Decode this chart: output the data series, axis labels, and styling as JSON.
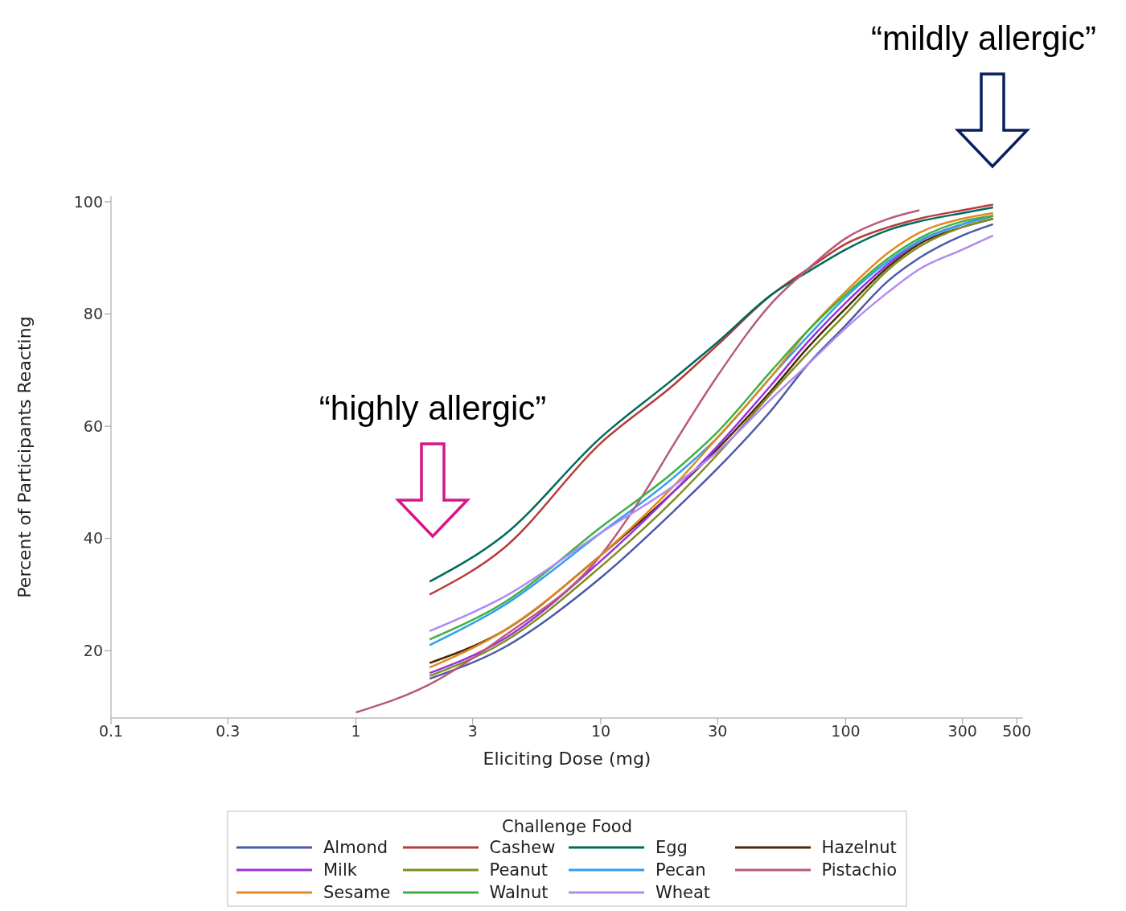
{
  "chart_data": {
    "type": "line",
    "xlabel": "Eliciting Dose (mg)",
    "ylabel": "Percent of Participants Reacting",
    "legend_title": "Challenge Food",
    "log": "x",
    "xlim": [
      0.1,
      530
    ],
    "xticks": [
      0.1,
      0.3,
      1,
      3,
      10,
      30,
      100,
      300,
      500
    ],
    "ylim": [
      8,
      101
    ],
    "yticks": [
      20,
      40,
      60,
      80,
      100
    ],
    "grid": false,
    "legend": "bottom",
    "x": [
      2,
      4,
      10,
      20,
      30,
      50,
      70,
      100,
      150,
      200,
      300,
      400
    ],
    "series": [
      {
        "name": "Almond",
        "color": "#4a5aa8",
        "values": [
          15,
          20.5,
          33,
          45,
          52.5,
          63,
          71,
          78,
          86,
          90,
          94,
          96
        ]
      },
      {
        "name": "Cashew",
        "color": "#b83a3a",
        "values": [
          30,
          38.2,
          57,
          67.5,
          74.5,
          83.5,
          88,
          92.5,
          95.5,
          97,
          98.5,
          99.5
        ]
      },
      {
        "name": "Egg",
        "color": "#006b5b",
        "values": [
          32.3,
          40.5,
          58,
          68.6,
          75,
          83.5,
          87.5,
          91.5,
          95,
          96.5,
          98,
          99
        ]
      },
      {
        "name": "Hazelnut",
        "color": "#4a2a0a",
        "values": [
          17.8,
          23.5,
          37,
          48.5,
          56,
          66.5,
          74,
          81,
          88.5,
          92.5,
          95.5,
          97
        ]
      },
      {
        "name": "Milk",
        "color": "#9b30e0",
        "values": [
          16,
          22,
          36,
          48.5,
          56.5,
          67.5,
          75,
          82,
          89,
          93,
          96,
          97.5
        ]
      },
      {
        "name": "Peanut",
        "color": "#7f8f1f",
        "values": [
          15.5,
          21.5,
          35,
          47,
          55,
          66,
          73,
          80,
          88,
          92,
          95.5,
          97
        ]
      },
      {
        "name": "Pecan",
        "color": "#2f9ff0",
        "values": [
          21,
          28,
          41,
          51,
          58,
          69,
          76,
          83,
          89.5,
          93,
          96,
          97.5
        ]
      },
      {
        "name": "Pistachio",
        "color": "#b85a7a",
        "x": [
          1,
          2,
          4,
          10,
          15,
          20,
          30,
          50,
          70,
          100,
          150,
          200
        ],
        "values": [
          9,
          14,
          22.5,
          37,
          48,
          57,
          69,
          82,
          88,
          93.5,
          97,
          98.5
        ]
      },
      {
        "name": "Sesame",
        "color": "#e08a20",
        "values": [
          17,
          23.5,
          37,
          49.5,
          58,
          69,
          77,
          84,
          91,
          94.5,
          97,
          98
        ]
      },
      {
        "name": "Walnut",
        "color": "#40b040",
        "values": [
          22,
          28.5,
          42,
          52,
          59,
          70,
          77,
          83.5,
          90,
          93.5,
          96.5,
          97.5
        ]
      },
      {
        "name": "Wheat",
        "color": "#b08af0",
        "values": [
          23.5,
          29.5,
          41,
          49.5,
          55.5,
          65,
          71,
          77.5,
          84,
          88,
          91.5,
          94
        ]
      }
    ],
    "annotations": [
      "“highly allergic”",
      "“mildly allergic”"
    ]
  }
}
